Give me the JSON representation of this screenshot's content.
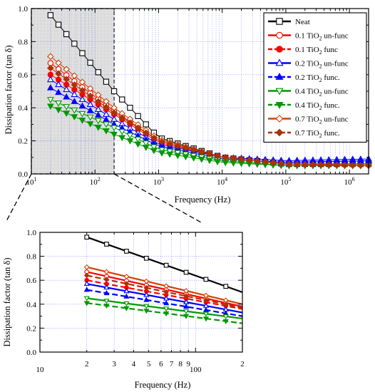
{
  "chart_data": [
    {
      "type": "line",
      "xscale": "log",
      "xlim": [
        10,
        2000000
      ],
      "ylim": [
        0,
        1.0
      ],
      "xlabel": "Frequency (Hz)",
      "ylabel": "Dissipation factor (tan δ)",
      "grid": true,
      "legend_position": "top-right",
      "x_tick_labels": [
        "10",
        "10",
        "10",
        "10",
        "10",
        "10"
      ],
      "x_tick_exponents": [
        "1",
        "2",
        "3",
        "4",
        "5",
        "6"
      ],
      "y_tick_labels": [
        "0.0",
        "0.2",
        "0.4",
        "0.6",
        "0.8",
        "1.0"
      ],
      "highlight_region": {
        "x_range": [
          18,
          200
        ],
        "y_range": [
          0,
          1.0
        ]
      },
      "series": [
        {
          "name": "Neat",
          "legend_main": "Neat",
          "legend_sub": "",
          "legend_tail": "",
          "color": "#000000",
          "marker": "square",
          "filled": false,
          "dash": "solid",
          "points": [
            [
              20,
              0.96
            ],
            [
              200,
              0.5
            ],
            [
              1000,
              0.22
            ],
            [
              10000,
              0.1
            ],
            [
              100000,
              0.06
            ],
            [
              2000000,
              0.06
            ]
          ]
        },
        {
          "name": "0.1 TiO2 un-func",
          "legend_main": "0.1 TiO",
          "legend_sub": "2",
          "legend_tail": " un-func",
          "color": "#ff0000",
          "marker": "circle",
          "filled": false,
          "dash": "solid",
          "points": [
            [
              20,
              0.67
            ],
            [
              200,
              0.38
            ],
            [
              1000,
              0.2
            ],
            [
              10000,
              0.1
            ],
            [
              100000,
              0.06
            ],
            [
              2000000,
              0.06
            ]
          ]
        },
        {
          "name": "0.1 TiO2 func",
          "legend_main": "0.1 TiO",
          "legend_sub": "2",
          "legend_tail": " func",
          "color": "#ff0000",
          "marker": "circle",
          "filled": true,
          "dash": "dashed",
          "points": [
            [
              20,
              0.6
            ],
            [
              200,
              0.36
            ],
            [
              1000,
              0.19
            ],
            [
              10000,
              0.1
            ],
            [
              100000,
              0.06
            ],
            [
              2000000,
              0.06
            ]
          ]
        },
        {
          "name": "0.2 TiO2 un-func",
          "legend_main": "0.2 TiO",
          "legend_sub": "2",
          "legend_tail": " un-func",
          "color": "#0000ff",
          "marker": "triangle-up",
          "filled": false,
          "dash": "solid",
          "points": [
            [
              20,
              0.57
            ],
            [
              200,
              0.33
            ],
            [
              1000,
              0.18
            ],
            [
              10000,
              0.1
            ],
            [
              100000,
              0.08
            ],
            [
              2000000,
              0.09
            ]
          ]
        },
        {
          "name": "0.2 TiO2 func.",
          "legend_main": "0.2 TiO",
          "legend_sub": "2",
          "legend_tail": " func.",
          "color": "#0000ff",
          "marker": "triangle-up",
          "filled": true,
          "dash": "dashed",
          "points": [
            [
              20,
              0.52
            ],
            [
              200,
              0.3
            ],
            [
              1000,
              0.17
            ],
            [
              10000,
              0.09
            ],
            [
              100000,
              0.07
            ],
            [
              2000000,
              0.08
            ]
          ]
        },
        {
          "name": "0.4 TiO2 un-func",
          "legend_main": "0.4 TiO",
          "legend_sub": "2",
          "legend_tail": " un-func",
          "color": "#009900",
          "marker": "triangle-down",
          "filled": false,
          "dash": "solid",
          "points": [
            [
              20,
              0.45
            ],
            [
              200,
              0.28
            ],
            [
              1000,
              0.15
            ],
            [
              10000,
              0.08
            ],
            [
              100000,
              0.05
            ],
            [
              2000000,
              0.05
            ]
          ]
        },
        {
          "name": "0.4 TiO2 func.",
          "legend_main": "0.4 TiO",
          "legend_sub": "2",
          "legend_tail": " func.",
          "color": "#009900",
          "marker": "triangle-down",
          "filled": true,
          "dash": "dashed",
          "points": [
            [
              20,
              0.41
            ],
            [
              200,
              0.24
            ],
            [
              1000,
              0.13
            ],
            [
              10000,
              0.07
            ],
            [
              100000,
              0.05
            ],
            [
              2000000,
              0.05
            ]
          ]
        },
        {
          "name": "0.7 TiO2 un-func",
          "legend_main": "0.7 TiO",
          "legend_sub": "2",
          "legend_tail": " un-func",
          "color": "#cc4400",
          "marker": "diamond",
          "filled": false,
          "dash": "solid",
          "points": [
            [
              20,
              0.71
            ],
            [
              200,
              0.4
            ],
            [
              1000,
              0.21
            ],
            [
              10000,
              0.1
            ],
            [
              100000,
              0.06
            ],
            [
              2000000,
              0.05
            ]
          ]
        },
        {
          "name": "0.7 TiO2 func.",
          "legend_main": "0.7 TiO",
          "legend_sub": "2",
          "legend_tail": " func.",
          "color": "#aa3300",
          "marker": "diamond",
          "filled": true,
          "dash": "dashed",
          "points": [
            [
              20,
              0.64
            ],
            [
              200,
              0.37
            ],
            [
              1000,
              0.2
            ],
            [
              10000,
              0.1
            ],
            [
              100000,
              0.06
            ],
            [
              2000000,
              0.05
            ]
          ]
        }
      ]
    },
    {
      "type": "line",
      "xscale": "log",
      "xlim": [
        10,
        200
      ],
      "ylim": [
        0,
        1.0
      ],
      "xlabel": "Frequency (Hz)",
      "ylabel": "Dissipation factor (tan δ)",
      "grid": true,
      "x_tick_labels": [
        "10",
        "2",
        "3",
        "4",
        "5",
        "6",
        "7",
        "8",
        "9",
        "100",
        "2"
      ],
      "x_tick_values": [
        10,
        20,
        30,
        40,
        50,
        60,
        70,
        80,
        90,
        100,
        200
      ],
      "y_tick_labels": [
        "0.0",
        "0.2",
        "0.4",
        "0.6",
        "0.8",
        "1.0"
      ],
      "series_ref": "same as upper chart, zoomed to 20–200 Hz"
    }
  ]
}
